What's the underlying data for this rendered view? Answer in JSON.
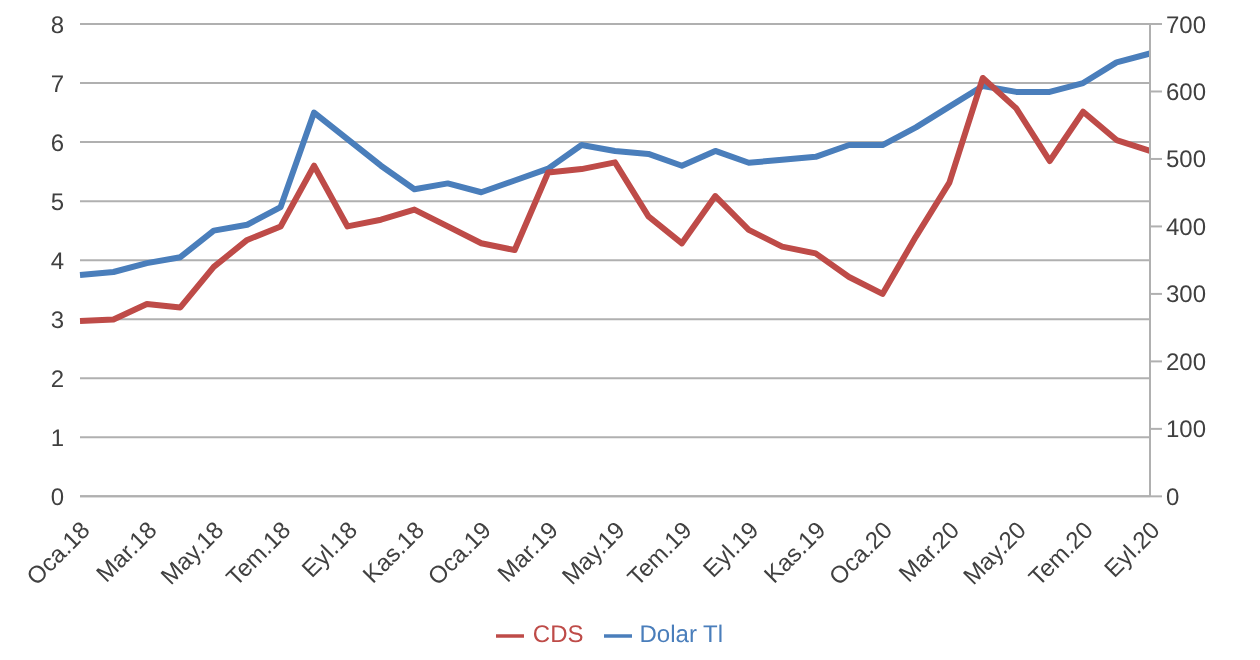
{
  "chart_data": {
    "type": "line",
    "categories": [
      "Oca.18",
      null,
      "Mar.18",
      null,
      "May.18",
      null,
      "Tem.18",
      null,
      "Eyl.18",
      null,
      "Kas.18",
      null,
      "Oca.19",
      null,
      "Mar.19",
      null,
      "May.19",
      null,
      "Tem.19",
      null,
      "Eyl.19",
      null,
      "Kas.19",
      null,
      "Oca.20",
      null,
      "Mar.20",
      null,
      "May.20",
      null,
      "Tem.20",
      null,
      "Eyl.20"
    ],
    "series": [
      {
        "name": "Dolar Tl",
        "color": "#4a7ebb",
        "values": [
          3.75,
          3.8,
          3.95,
          4.05,
          4.5,
          4.6,
          4.9,
          6.5,
          6.05,
          5.6,
          5.2,
          5.3,
          5.15,
          5.35,
          5.55,
          5.95,
          5.85,
          5.8,
          5.6,
          5.85,
          5.65,
          5.7,
          5.75,
          5.95,
          5.95,
          6.25,
          6.6,
          6.95,
          6.85,
          6.85,
          7.0,
          7.35,
          7.5
        ]
      },
      {
        "name": "CDS",
        "color": "#be4b48",
        "axis": "y2",
        "values": [
          260,
          262,
          285,
          280,
          340,
          380,
          400,
          490,
          400,
          410,
          425,
          400,
          375,
          365,
          480,
          485,
          495,
          415,
          375,
          445,
          395,
          370,
          360,
          325,
          300,
          385,
          465,
          620,
          575,
          497,
          570,
          528,
          512
        ]
      }
    ],
    "ylim": [
      0,
      8
    ],
    "yticks": [
      0,
      1,
      2,
      3,
      4,
      5,
      6,
      7,
      8
    ],
    "y2lim": [
      0,
      700
    ],
    "y2ticks": [
      0,
      100,
      200,
      300,
      400,
      500,
      600,
      700
    ],
    "grid": "y",
    "legend": "bottom",
    "marker": "none",
    "line_style": "solid"
  }
}
